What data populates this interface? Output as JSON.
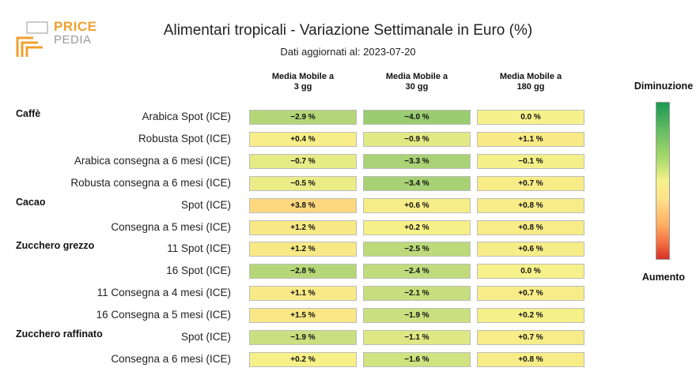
{
  "logo": {
    "line1": "PRICE",
    "line2": "PEDIA"
  },
  "colors": {
    "logo_orange": "#f0a030",
    "logo_grey": "#9a9a9a"
  },
  "header": {
    "title": "Alimentari tropicali - Variazione Settimanale in Euro (%)",
    "subtitle": "Dati aggiornati al: 2023-07-20"
  },
  "legend": {
    "top": "Diminuzione",
    "bottom": "Aumento"
  },
  "chart_data": {
    "type": "heatmap",
    "columns": [
      "Media Mobile a\n3 gg",
      "Media Mobile a\n30 gg",
      "Media Mobile a\n180 gg"
    ],
    "column_lines": [
      [
        "Media Mobile a",
        "3 gg"
      ],
      [
        "Media Mobile a",
        "30 gg"
      ],
      [
        "Media Mobile a",
        "180 gg"
      ]
    ],
    "groups": [
      {
        "name": "Caffè",
        "first_row": 0
      },
      {
        "name": "Cacao",
        "first_row": 4
      },
      {
        "name": "Zucchero grezzo",
        "first_row": 6
      },
      {
        "name": "Zucchero raffinato",
        "first_row": 10
      }
    ],
    "rows": [
      {
        "label": "Arabica Spot (ICE)",
        "values": [
          -2.9,
          -4.0,
          0.0
        ],
        "text": [
          "-2.9 %",
          "-4.0 %",
          "0.0 %"
        ]
      },
      {
        "label": "Robusta Spot (ICE)",
        "values": [
          0.4,
          -0.9,
          1.1
        ],
        "text": [
          "+0.4 %",
          "-0.9 %",
          "+1.1 %"
        ]
      },
      {
        "label": "Arabica consegna a 6 mesi (ICE)",
        "values": [
          -0.7,
          -3.3,
          -0.1
        ],
        "text": [
          "-0.7 %",
          "-3.3 %",
          "-0.1 %"
        ]
      },
      {
        "label": "Robusta consegna a 6 mesi (ICE)",
        "values": [
          -0.5,
          -3.4,
          0.7
        ],
        "text": [
          "-0.5 %",
          "-3.4 %",
          "+0.7 %"
        ]
      },
      {
        "label": "Spot (ICE)",
        "values": [
          3.8,
          0.6,
          0.8
        ],
        "text": [
          "+3.8 %",
          "+0.6 %",
          "+0.8 %"
        ]
      },
      {
        "label": "Consegna a 5 mesi (ICE)",
        "values": [
          1.2,
          0.2,
          0.8
        ],
        "text": [
          "+1.2 %",
          "+0.2 %",
          "+0.8 %"
        ]
      },
      {
        "label": "11 Spot (ICE)",
        "values": [
          1.2,
          -2.5,
          0.6
        ],
        "text": [
          "+1.2 %",
          "-2.5 %",
          "+0.6 %"
        ]
      },
      {
        "label": "16 Spot (ICE)",
        "values": [
          -2.8,
          -2.4,
          0.0
        ],
        "text": [
          "-2.8 %",
          "-2.4 %",
          "0.0 %"
        ]
      },
      {
        "label": "11 Consegna a 4 mesi (ICE)",
        "values": [
          1.1,
          -2.1,
          0.7
        ],
        "text": [
          "+1.1 %",
          "-2.1 %",
          "+0.7 %"
        ]
      },
      {
        "label": "16 Consegna a 5 mesi (ICE)",
        "values": [
          1.5,
          -1.9,
          0.2
        ],
        "text": [
          "+1.5 %",
          "-1.9 %",
          "+0.2 %"
        ]
      },
      {
        "label": "Spot (ICE)",
        "values": [
          -1.9,
          -1.1,
          0.7
        ],
        "text": [
          "-1.9 %",
          "-1.1 %",
          "+0.7 %"
        ]
      },
      {
        "label": "Consegna a 6 mesi (ICE)",
        "values": [
          0.2,
          -1.6,
          0.8
        ],
        "text": [
          "+0.2 %",
          "-1.6 %",
          "+0.8 %"
        ]
      }
    ],
    "color_scale": {
      "min": -6,
      "max": 6,
      "low_color": "#1a9850",
      "mid_color": "#f6f18a",
      "high_color": "#d73027"
    },
    "legend_placement": "right"
  }
}
